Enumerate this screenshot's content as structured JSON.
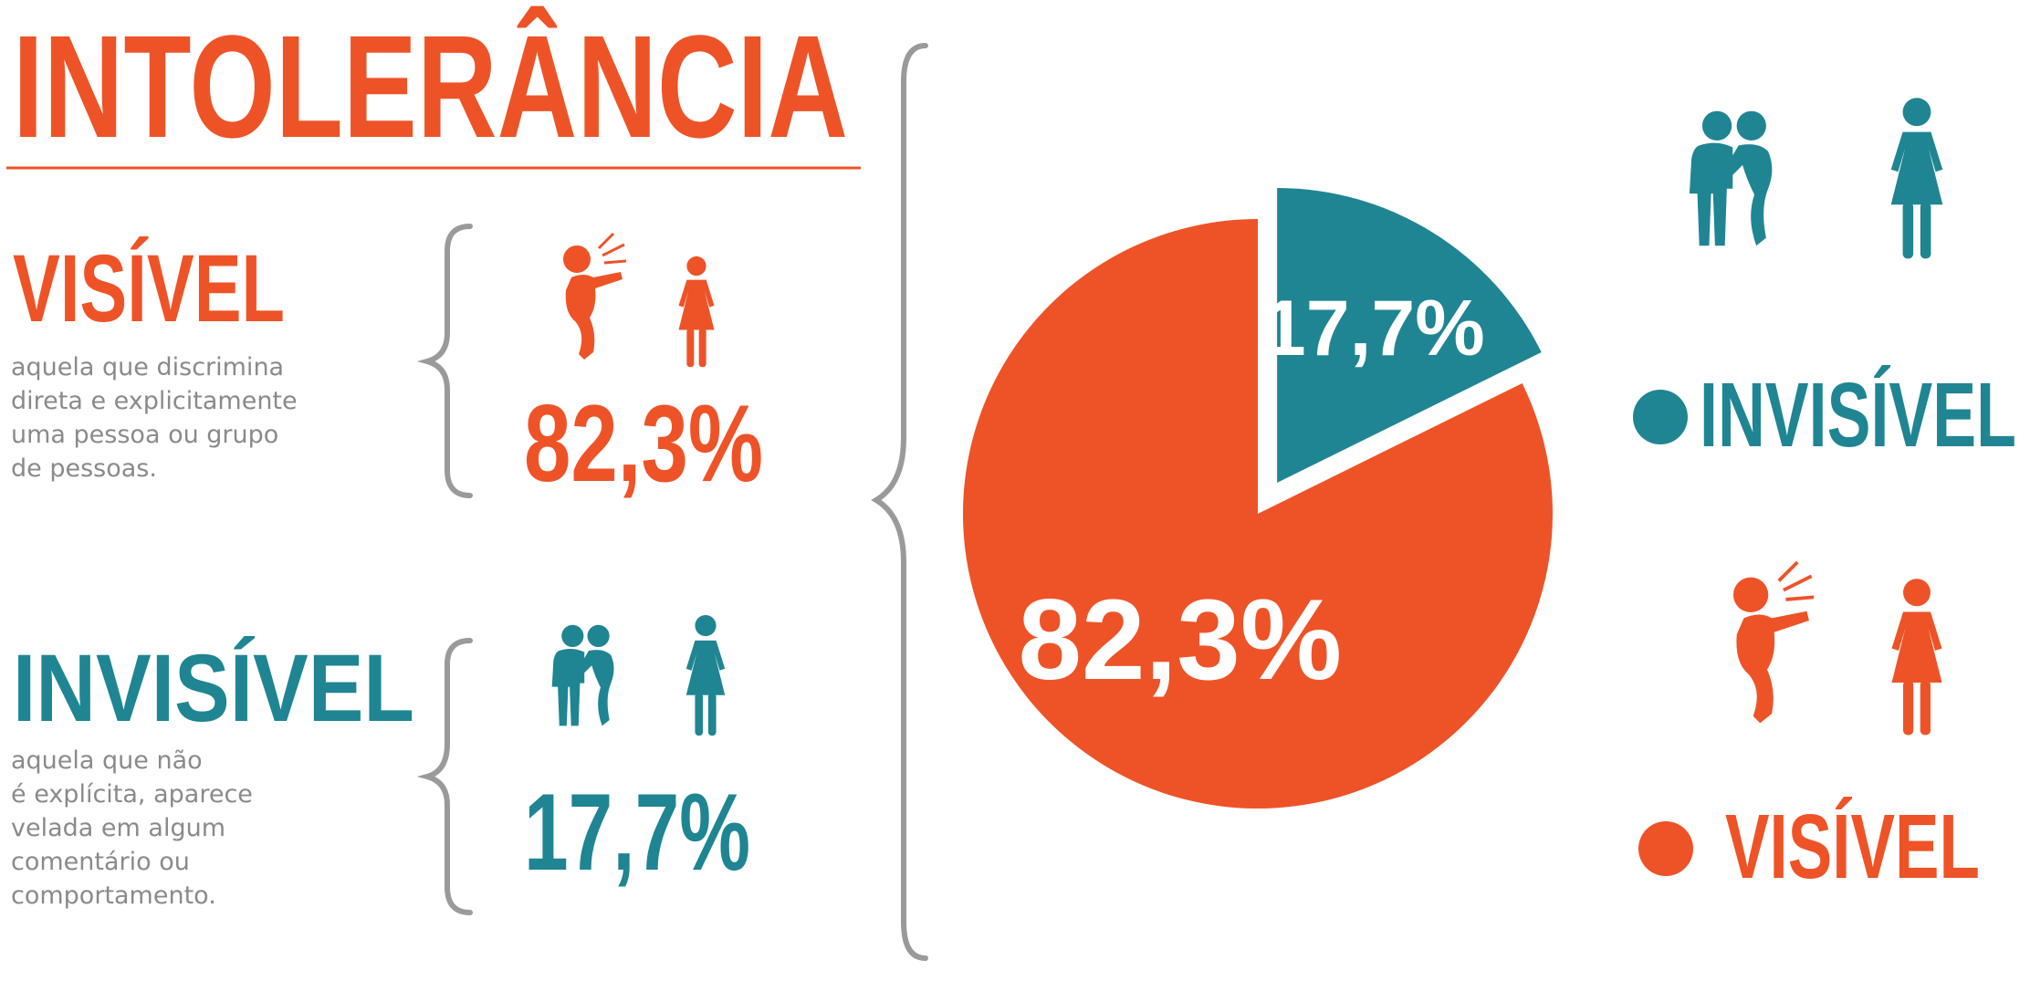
{
  "chart_data": {
    "type": "pie",
    "title": "INTOLERÂNCIA",
    "categories": [
      "INVISÍVEL",
      "VISÍVEL"
    ],
    "values": [
      17.7,
      82.3
    ],
    "value_labels": [
      "17,7%",
      "82,3%"
    ],
    "colors": [
      "#1f8593",
      "#ee5327"
    ],
    "legend": "right"
  },
  "descriptions": {
    "visible": [
      "aquela que discrimina",
      "direta e explicitamente",
      "uma pessoa ou grupo",
      "de pessoas."
    ],
    "invisible": [
      "aquela que não",
      "é explícita, aparece",
      "velada em algum",
      "comentário ou",
      "comportamento."
    ]
  }
}
